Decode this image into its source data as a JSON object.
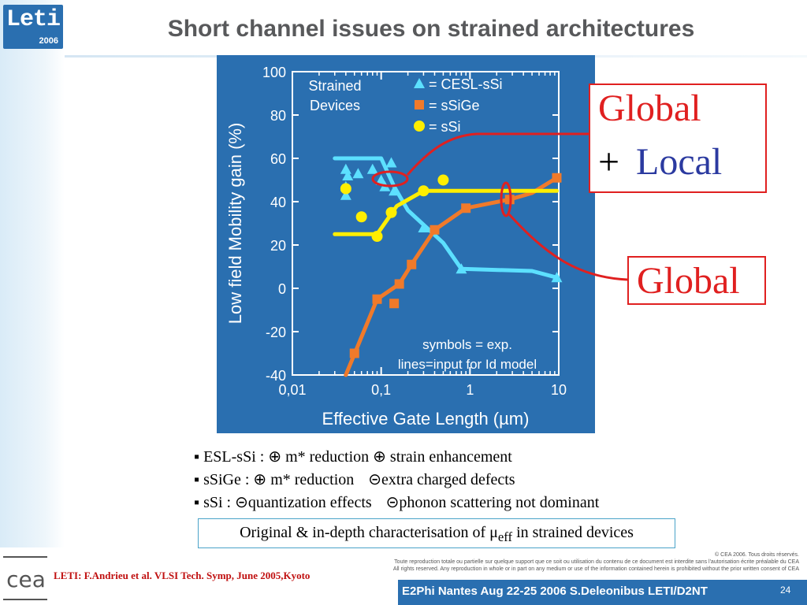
{
  "header": {
    "logo_text": "Leti",
    "logo_year": "2006",
    "title": "Short channel issues on strained architectures"
  },
  "chart_data": {
    "type": "scatter",
    "xlabel": "Effective Gate Length (µm)",
    "ylabel": "Low field Mobility gain (%)",
    "x_scale": "log",
    "xlim": [
      0.01,
      10
    ],
    "ylim": [
      -40,
      100
    ],
    "x_ticks": [
      "0,01",
      "0,1",
      "1",
      "10"
    ],
    "y_ticks": [
      "100",
      "80",
      "60",
      "40",
      "20",
      "0",
      "-20",
      "-40"
    ],
    "legend_title": [
      "Strained",
      "Devices"
    ],
    "legend": [
      {
        "label": "= CESL-sSi",
        "color": "#5ce0ff",
        "marker": "triangle"
      },
      {
        "label": "= sSiGe",
        "color": "#f07a2a",
        "marker": "square"
      },
      {
        "label": "= sSi",
        "color": "#ffee00",
        "marker": "circle"
      }
    ],
    "annotation": [
      "symbols = exp.",
      "lines=input for Id model"
    ],
    "series": [
      {
        "name": "CESL-sSi",
        "color": "#5ce0ff",
        "marker": "triangle",
        "points": [
          [
            0.04,
            55
          ],
          [
            0.042,
            52
          ],
          [
            0.04,
            47
          ],
          [
            0.04,
            43
          ],
          [
            0.055,
            53
          ],
          [
            0.08,
            55
          ],
          [
            0.1,
            50
          ],
          [
            0.11,
            47
          ],
          [
            0.13,
            58
          ],
          [
            0.14,
            45
          ],
          [
            0.3,
            28
          ],
          [
            0.8,
            9
          ],
          [
            9.5,
            5
          ]
        ],
        "line": [
          [
            0.03,
            60
          ],
          [
            0.1,
            60
          ],
          [
            0.14,
            47
          ],
          [
            0.2,
            36
          ],
          [
            0.5,
            21
          ],
          [
            0.8,
            9
          ],
          [
            5,
            8
          ],
          [
            9.5,
            5
          ]
        ]
      },
      {
        "name": "sSiGe",
        "color": "#f07a2a",
        "marker": "square",
        "points": [
          [
            0.05,
            -30
          ],
          [
            0.09,
            -5
          ],
          [
            0.14,
            -7
          ],
          [
            0.16,
            2
          ],
          [
            0.22,
            11
          ],
          [
            0.4,
            27
          ],
          [
            0.9,
            37
          ],
          [
            2.8,
            41
          ],
          [
            9.5,
            51
          ]
        ],
        "line": [
          [
            0.04,
            -40
          ],
          [
            0.09,
            -5
          ],
          [
            0.16,
            2
          ],
          [
            0.22,
            11
          ],
          [
            0.4,
            27
          ],
          [
            0.9,
            37
          ],
          [
            2.8,
            41
          ],
          [
            5,
            44
          ],
          [
            9.5,
            51
          ]
        ]
      },
      {
        "name": "sSi",
        "color": "#ffee00",
        "marker": "circle",
        "points": [
          [
            0.04,
            46
          ],
          [
            0.06,
            33
          ],
          [
            0.09,
            24
          ],
          [
            0.13,
            35
          ],
          [
            0.3,
            45
          ],
          [
            0.5,
            50
          ]
        ],
        "line": [
          [
            0.03,
            25
          ],
          [
            0.09,
            25
          ],
          [
            0.15,
            38
          ],
          [
            0.3,
            45
          ],
          [
            0.5,
            45
          ],
          [
            9.5,
            45
          ]
        ]
      }
    ]
  },
  "callouts": {
    "global_local": {
      "word1": "Global",
      "plus": "+",
      "word2": "Local"
    },
    "global": {
      "word1": "Global"
    }
  },
  "bullets": [
    {
      "a": "▪ ESL-sSi : ⊕ m* reduction ⊕ strain enhancement",
      "b": ""
    },
    {
      "a": "▪ sSiGe : ⊕ m* reduction",
      "b": "⊝extra charged defects"
    },
    {
      "a": "▪ sSi : ⊝quantization effects",
      "b": "⊝phonon scattering not dominant"
    }
  ],
  "summary": {
    "prefix": "Original & in-depth characterisation of μ",
    "sub": "eff",
    "suffix": " in strained devices"
  },
  "footer": {
    "reference": "LETI: F.Andrieu et al. VLSI Tech. Symp, June 2005,Kyoto",
    "copyright": [
      "© CEA 2006. Tous droits réservés.",
      "Toute reproduction totale ou partielle sur quelque support que ce soit ou utilisation du contenu de ce document est interdite sans l'autorisation écrite préalable du CEA",
      "All rights reserved. Any reproduction in whole or in part on any medium or use of the information contained herein is prohibited without the prior written consent of CEA"
    ],
    "bar_text": "E2Phi Nantes Aug 22-25 2006 S.Deleonibus LETI/D2NT",
    "page_number": "24",
    "cea_logo_text": "cea"
  }
}
